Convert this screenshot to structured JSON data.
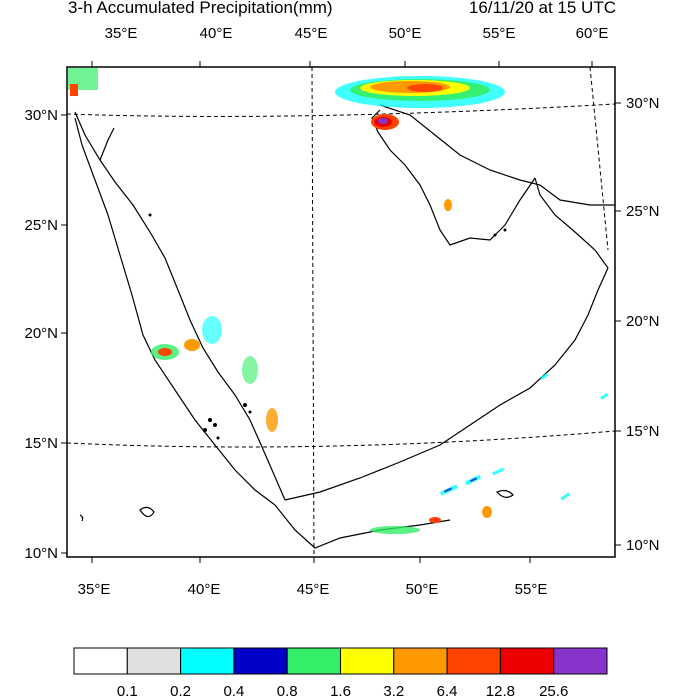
{
  "header": {
    "title": "3-h Accumulated Precipitation(mm)",
    "valid_time": "16/11/20 at 15 UTC"
  },
  "axes": {
    "top_lon_labels": [
      "35°E",
      "40°E",
      "45°E",
      "50°E",
      "55°E",
      "60°E"
    ],
    "bottom_lon_labels": [
      "35°E",
      "40°E",
      "45°E",
      "50°E",
      "55°E"
    ],
    "left_lat_labels": [
      "30°N",
      "25°N",
      "20°N",
      "15°N",
      "10°N"
    ],
    "right_lat_labels": [
      "30°N",
      "25°N",
      "20°N",
      "15°N",
      "10°N"
    ]
  },
  "colorbar": {
    "colors": [
      "#ffffff",
      "#e0e0e0",
      "#00ffff",
      "#0000c8",
      "#33ee66",
      "#ffff00",
      "#ff9900",
      "#ff4400",
      "#ee0000",
      "#8833cc"
    ],
    "thresholds": [
      "0.1",
      "0.2",
      "0.4",
      "0.8",
      "1.6",
      "3.2",
      "6.4",
      "12.8",
      "25.6"
    ]
  }
}
